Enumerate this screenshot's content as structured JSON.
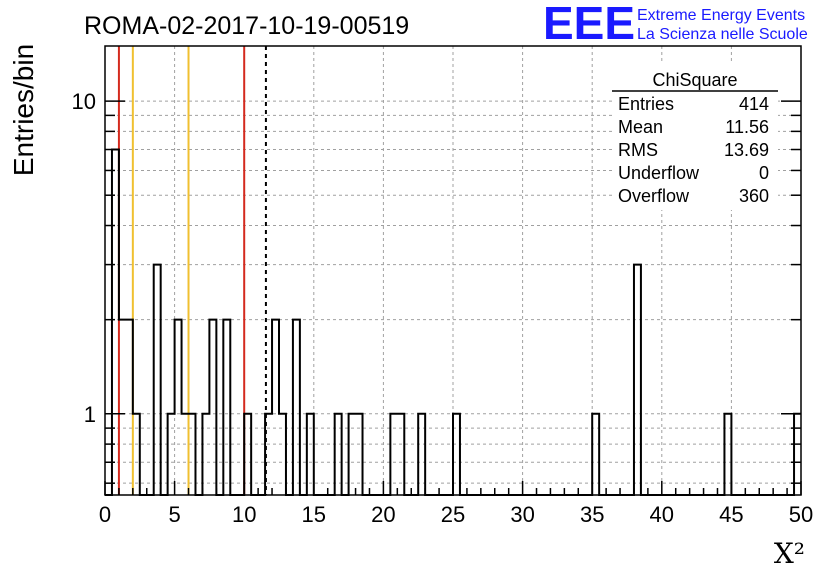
{
  "chart_data": {
    "type": "bar",
    "title": "ROMA-02-2017-10-19-00519",
    "xlabel": "X²",
    "ylabel": "Entries/bin",
    "xlim": [
      0,
      50
    ],
    "ylim": [
      0.55,
      15
    ],
    "yscale": "log",
    "bin_width": 0.5,
    "grid": true,
    "x_ticks": [
      "0",
      "5",
      "10",
      "15",
      "20",
      "25",
      "30",
      "35",
      "40",
      "45",
      "50"
    ],
    "y_ticks": [
      "1",
      "10"
    ],
    "bins": [
      {
        "x": 0.5,
        "y": 7
      },
      {
        "x": 1.0,
        "y": 2
      },
      {
        "x": 1.5,
        "y": 2
      },
      {
        "x": 2.0,
        "y": 1
      },
      {
        "x": 3.5,
        "y": 3
      },
      {
        "x": 4.5,
        "y": 1
      },
      {
        "x": 5.0,
        "y": 2
      },
      {
        "x": 5.5,
        "y": 1
      },
      {
        "x": 6.0,
        "y": 1
      },
      {
        "x": 7.0,
        "y": 1
      },
      {
        "x": 7.5,
        "y": 2
      },
      {
        "x": 8.5,
        "y": 2
      },
      {
        "x": 10.0,
        "y": 1
      },
      {
        "x": 11.5,
        "y": 1
      },
      {
        "x": 12.0,
        "y": 2
      },
      {
        "x": 12.5,
        "y": 1
      },
      {
        "x": 13.5,
        "y": 2
      },
      {
        "x": 14.5,
        "y": 1
      },
      {
        "x": 16.5,
        "y": 1
      },
      {
        "x": 17.5,
        "y": 1
      },
      {
        "x": 18.0,
        "y": 1
      },
      {
        "x": 20.5,
        "y": 1
      },
      {
        "x": 21.0,
        "y": 1
      },
      {
        "x": 22.5,
        "y": 1
      },
      {
        "x": 25.0,
        "y": 1
      },
      {
        "x": 35.0,
        "y": 1
      },
      {
        "x": 38.0,
        "y": 3
      },
      {
        "x": 44.5,
        "y": 1
      },
      {
        "x": 49.5,
        "y": 1
      }
    ],
    "reference_lines": [
      {
        "x": 1.0,
        "color": "#d42a1e",
        "style": "solid"
      },
      {
        "x": 2.0,
        "color": "#f0c030",
        "style": "solid"
      },
      {
        "x": 6.0,
        "color": "#f0c030",
        "style": "solid"
      },
      {
        "x": 10.0,
        "color": "#d42a1e",
        "style": "solid"
      },
      {
        "x": 11.56,
        "color": "#000000",
        "style": "dashed"
      }
    ],
    "stats_box": {
      "title": "ChiSquare",
      "rows": [
        {
          "label": "Entries",
          "value": "414"
        },
        {
          "label": "Mean",
          "value": "11.56"
        },
        {
          "label": "RMS",
          "value": "13.69"
        },
        {
          "label": "Underflow",
          "value": "0"
        },
        {
          "label": "Overflow",
          "value": "360"
        }
      ]
    }
  },
  "logo": {
    "text": "EEE",
    "line1": "Extreme Energy Events",
    "line2": "La Scienza nelle Scuole",
    "color": "#1a1aff"
  }
}
